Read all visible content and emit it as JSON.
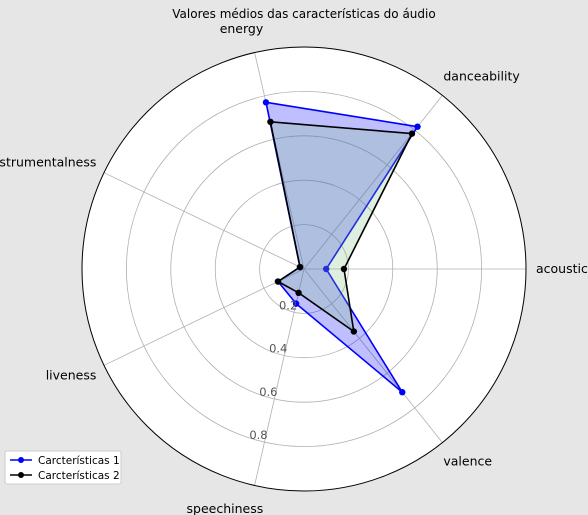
{
  "chart_data": {
    "type": "radar",
    "title": "Valores médios das características do áudio",
    "categories": [
      "acousticness",
      "danceability",
      "energy",
      "instrumentalness",
      "liveness",
      "speechiness",
      "valence"
    ],
    "rlim": [
      0,
      1.0
    ],
    "r_ticks": [
      "0.2",
      "0.4",
      "0.6",
      "0.8"
    ],
    "grid": true,
    "legend_position": "lower-left",
    "series": [
      {
        "name": "Carcterísticas 1",
        "color": "#0000ff",
        "fill": "#0000ff",
        "values": [
          0.1,
          0.82,
          0.77,
          0.02,
          0.13,
          0.16,
          0.71
        ]
      },
      {
        "name": "Carcterísticas 2",
        "color": "#000000",
        "fill": "#7fbf7f",
        "values": [
          0.18,
          0.78,
          0.68,
          0.02,
          0.13,
          0.11,
          0.36
        ]
      }
    ]
  }
}
